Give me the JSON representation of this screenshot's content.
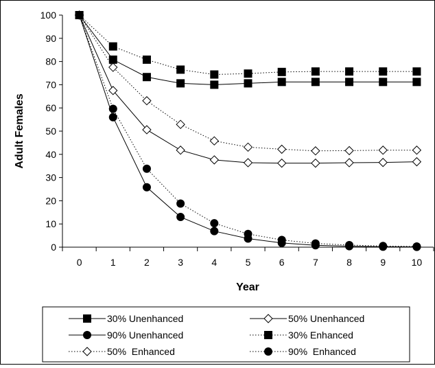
{
  "chart_data": {
    "type": "line",
    "title": "",
    "xlabel": "Year",
    "ylabel": "Adult Females",
    "x": [
      0,
      1,
      2,
      3,
      4,
      5,
      6,
      7,
      8,
      9,
      10
    ],
    "xlim": [
      -0.5,
      10.5
    ],
    "ylim": [
      0,
      100
    ],
    "yticks": [
      0,
      10,
      20,
      30,
      40,
      50,
      60,
      70,
      80,
      90,
      100
    ],
    "xtick_labels": [
      "0",
      "1",
      "2",
      "3",
      "4",
      "5",
      "6",
      "7",
      "8",
      "9",
      "10"
    ],
    "ytick_labels": [
      "0",
      "10",
      "20",
      "30",
      "40",
      "50",
      "60",
      "70",
      "80",
      "90",
      "100"
    ],
    "grid": false,
    "legend_position": "bottom",
    "series": [
      {
        "name": "30% Unenhanced",
        "marker": "square-filled",
        "line": "solid",
        "values": [
          100,
          80.8,
          73.3,
          70.6,
          70.0,
          70.6,
          71.2,
          71.2,
          71.2,
          71.2,
          71.2
        ]
      },
      {
        "name": "50% Unenhanced",
        "marker": "diamond-open",
        "line": "solid",
        "values": [
          100,
          67.5,
          50.6,
          41.8,
          37.6,
          36.4,
          36.2,
          36.2,
          36.4,
          36.5,
          36.8
        ]
      },
      {
        "name": "90% Unenhanced",
        "marker": "circle-filled",
        "line": "solid",
        "values": [
          100,
          56.0,
          25.8,
          13.0,
          6.9,
          3.7,
          1.8,
          0.8,
          0.4,
          0.2,
          0.1
        ]
      },
      {
        "name": "30% Enhanced",
        "marker": "square-filled",
        "line": "dotted",
        "values": [
          100,
          86.5,
          80.8,
          76.5,
          74.4,
          74.8,
          75.5,
          75.7,
          75.7,
          75.7,
          75.7
        ]
      },
      {
        "name": "50%  Enhanced",
        "marker": "diamond-open",
        "line": "dotted",
        "values": [
          100,
          77.5,
          63.1,
          52.9,
          45.8,
          43.1,
          42.2,
          41.5,
          41.6,
          41.8,
          41.8
        ]
      },
      {
        "name": "90%  Enhanced",
        "marker": "circle-filled",
        "line": "dotted",
        "values": [
          100,
          59.6,
          33.8,
          18.8,
          10.3,
          5.7,
          3.1,
          1.6,
          0.9,
          0.5,
          0.3
        ]
      }
    ]
  }
}
